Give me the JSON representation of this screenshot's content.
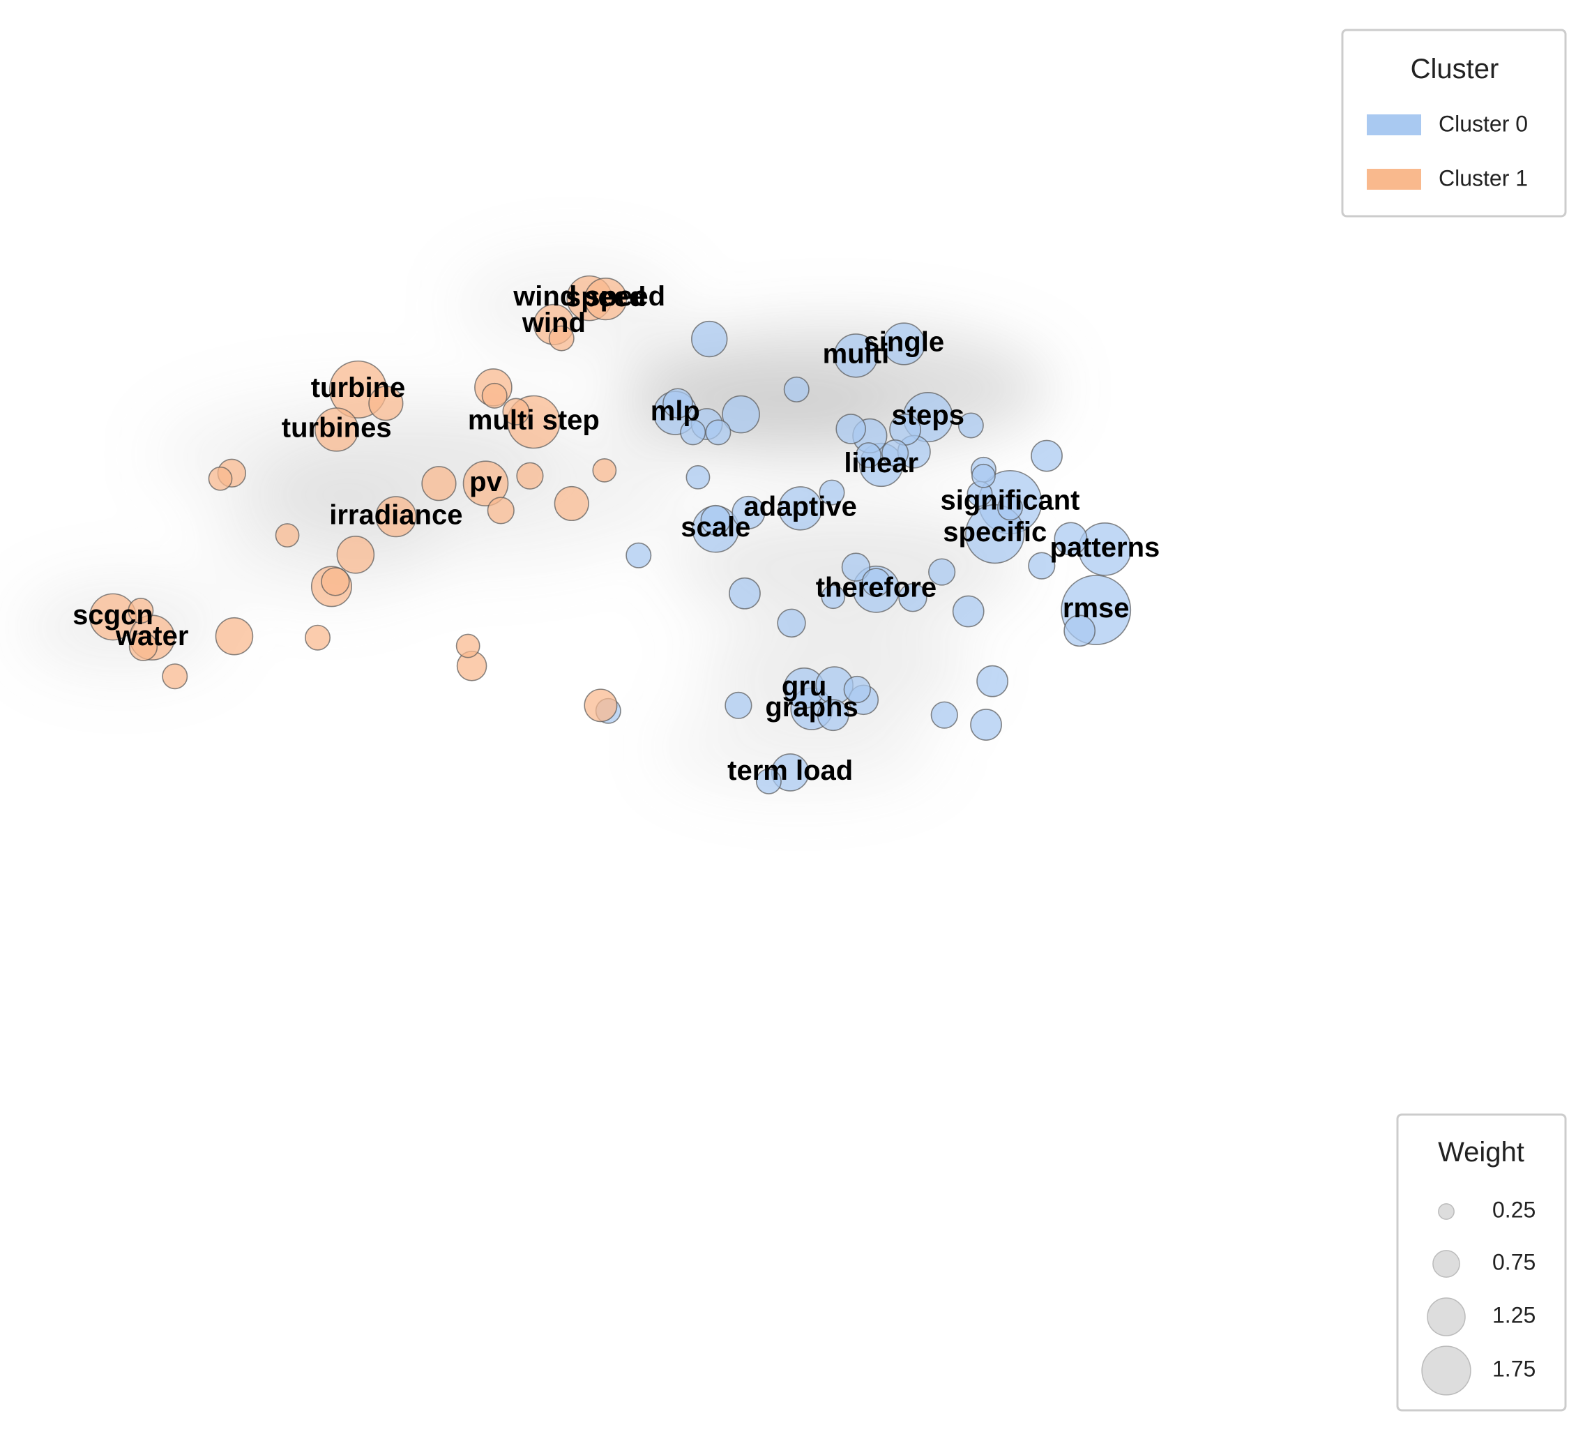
{
  "chart_data": {
    "type": "scatter",
    "title": "",
    "xlabel": "",
    "ylabel": "",
    "grid": false,
    "xlim": [
      0,
      1000
    ],
    "ylim": [
      0,
      1000
    ],
    "density_background": true,
    "colors": {
      "Cluster 0": "#a9c9f1",
      "Cluster 1": "#f9b98d",
      "stroke": "#555555",
      "weight_swatch": "#d9d9d9"
    },
    "legend_cluster": {
      "title": "Cluster",
      "placement": "top-right",
      "entries": [
        {
          "label": "Cluster 0",
          "color": "#a9c9f1"
        },
        {
          "label": "Cluster 1",
          "color": "#f9b98d"
        }
      ]
    },
    "legend_weight": {
      "title": "Weight",
      "placement": "bottom-right",
      "values": [
        0.25,
        0.75,
        1.25,
        1.75
      ],
      "labels": [
        "0.25",
        "0.75",
        "1.25",
        "1.75"
      ]
    },
    "density_blobs": [
      {
        "x": 620,
        "y": 715,
        "wx": 170,
        "wy": 90,
        "strength": 0.75
      },
      {
        "x": 560,
        "y": 680,
        "wx": 110,
        "wy": 60,
        "strength": 0.45
      },
      {
        "x": 630,
        "y": 460,
        "wx": 140,
        "wy": 80,
        "strength": 0.45
      },
      {
        "x": 620,
        "y": 310,
        "wx": 110,
        "wy": 65,
        "strength": 0.4
      },
      {
        "x": 590,
        "y": 195,
        "wx": 110,
        "wy": 60,
        "strength": 0.3
      },
      {
        "x": 330,
        "y": 570,
        "wx": 170,
        "wy": 110,
        "strength": 0.3
      },
      {
        "x": 215,
        "y": 500,
        "wx": 90,
        "wy": 90,
        "strength": 0.3
      },
      {
        "x": 410,
        "y": 835,
        "wx": 90,
        "wy": 70,
        "strength": 0.3
      },
      {
        "x": 55,
        "y": 370,
        "wx": 80,
        "wy": 65,
        "strength": 0.35
      },
      {
        "x": 240,
        "y": 620,
        "wx": 160,
        "wy": 90,
        "strength": 0.25
      }
    ],
    "series": [
      {
        "name": "Cluster 0",
        "points": [
          {
            "label": "single",
            "x": 674,
            "y": 780,
            "w": 0.9
          },
          {
            "label": "multi",
            "x": 636,
            "y": 763,
            "w": 0.95
          },
          {
            "label": "",
            "x": 520,
            "y": 787,
            "w": 0.7
          },
          {
            "label": "",
            "x": 589,
            "y": 714,
            "w": 0.35
          },
          {
            "label": "mlp",
            "x": 493,
            "y": 680,
            "w": 0.95
          },
          {
            "label": "",
            "x": 495,
            "y": 694,
            "w": 0.5
          },
          {
            "label": "",
            "x": 545,
            "y": 678,
            "w": 0.75
          },
          {
            "label": "",
            "x": 518,
            "y": 664,
            "w": 0.55
          },
          {
            "label": "",
            "x": 507,
            "y": 652,
            "w": 0.35
          },
          {
            "label": "",
            "x": 527,
            "y": 652,
            "w": 0.35
          },
          {
            "label": "steps",
            "x": 693,
            "y": 674,
            "w": 1.15
          },
          {
            "label": "",
            "x": 632,
            "y": 657,
            "w": 0.5
          },
          {
            "label": "",
            "x": 647,
            "y": 647,
            "w": 0.65
          },
          {
            "label": "",
            "x": 675,
            "y": 656,
            "w": 0.55
          },
          {
            "label": "",
            "x": 727,
            "y": 662,
            "w": 0.35
          },
          {
            "label": "",
            "x": 682,
            "y": 624,
            "w": 0.6
          },
          {
            "label": "",
            "x": 667,
            "y": 622,
            "w": 0.4
          },
          {
            "label": "",
            "x": 646,
            "y": 619,
            "w": 0.35
          },
          {
            "label": "linear",
            "x": 656,
            "y": 605,
            "w": 0.95
          },
          {
            "label": "",
            "x": 787,
            "y": 618,
            "w": 0.55
          },
          {
            "label": "",
            "x": 737,
            "y": 598,
            "w": 0.35
          },
          {
            "label": "",
            "x": 737,
            "y": 589,
            "w": 0.3
          },
          {
            "label": "",
            "x": 511,
            "y": 587,
            "w": 0.3
          },
          {
            "label": "",
            "x": 617,
            "y": 565,
            "w": 0.35
          },
          {
            "label": "",
            "x": 734,
            "y": 563,
            "w": 0.35
          },
          {
            "label": "significant",
            "x": 758,
            "y": 551,
            "w": 1.6
          },
          {
            "label": "",
            "x": 758,
            "y": 543,
            "w": 0.35
          },
          {
            "label": "adaptive",
            "x": 592,
            "y": 542,
            "w": 0.95
          },
          {
            "label": "",
            "x": 551,
            "y": 536,
            "w": 0.6
          },
          {
            "label": "scale",
            "x": 525,
            "y": 512,
            "w": 1.05
          },
          {
            "label": "",
            "x": 525,
            "y": 525,
            "w": 0.5
          },
          {
            "label": "specific",
            "x": 746,
            "y": 505,
            "w": 1.45
          },
          {
            "label": "",
            "x": 806,
            "y": 498,
            "w": 0.6
          },
          {
            "label": "patterns",
            "x": 833,
            "y": 483,
            "w": 1.25
          },
          {
            "label": "",
            "x": 464,
            "y": 474,
            "w": 0.35
          },
          {
            "label": "",
            "x": 636,
            "y": 457,
            "w": 0.45
          },
          {
            "label": "",
            "x": 783,
            "y": 459,
            "w": 0.4
          },
          {
            "label": "",
            "x": 704,
            "y": 450,
            "w": 0.4
          },
          {
            "label": "therefore",
            "x": 652,
            "y": 425,
            "w": 1.05
          },
          {
            "label": "",
            "x": 652,
            "y": 435,
            "w": 0.45
          },
          {
            "label": "",
            "x": 618,
            "y": 414,
            "w": 0.3
          },
          {
            "label": "",
            "x": 681,
            "y": 413,
            "w": 0.45
          },
          {
            "label": "",
            "x": 548,
            "y": 419,
            "w": 0.55
          },
          {
            "label": "rmse",
            "x": 826,
            "y": 395,
            "w": 1.8
          },
          {
            "label": "",
            "x": 725,
            "y": 393,
            "w": 0.55
          },
          {
            "label": "",
            "x": 585,
            "y": 376,
            "w": 0.45
          },
          {
            "label": "",
            "x": 813,
            "y": 365,
            "w": 0.55
          },
          {
            "label": "",
            "x": 744,
            "y": 292,
            "w": 0.55
          },
          {
            "label": "gru",
            "x": 595,
            "y": 282,
            "w": 0.85
          },
          {
            "label": "",
            "x": 619,
            "y": 286,
            "w": 0.75
          },
          {
            "label": "",
            "x": 637,
            "y": 280,
            "w": 0.4
          },
          {
            "label": "",
            "x": 642,
            "y": 265,
            "w": 0.5
          },
          {
            "label": "graphs",
            "x": 601,
            "y": 252,
            "w": 0.9
          },
          {
            "label": "",
            "x": 618,
            "y": 243,
            "w": 0.55
          },
          {
            "label": "",
            "x": 543,
            "y": 257,
            "w": 0.4
          },
          {
            "label": "",
            "x": 706,
            "y": 243,
            "w": 0.4
          },
          {
            "label": "",
            "x": 739,
            "y": 229,
            "w": 0.55
          },
          {
            "label": "",
            "x": 440,
            "y": 249,
            "w": 0.35
          },
          {
            "label": "term load",
            "x": 584,
            "y": 160,
            "w": 0.75
          },
          {
            "label": "",
            "x": 567,
            "y": 147,
            "w": 0.35
          }
        ]
      },
      {
        "name": "Cluster 1",
        "points": [
          {
            "label": "wind speed",
            "x": 425,
            "y": 846,
            "w": 1.0
          },
          {
            "label": "speed",
            "x": 438,
            "y": 845,
            "w": 0.9
          },
          {
            "label": "wind",
            "x": 397,
            "y": 808,
            "w": 0.85
          },
          {
            "label": "",
            "x": 403,
            "y": 788,
            "w": 0.35
          },
          {
            "label": "turbine",
            "x": 242,
            "y": 714,
            "w": 1.4
          },
          {
            "label": "",
            "x": 264,
            "y": 694,
            "w": 0.65
          },
          {
            "label": "",
            "x": 349,
            "y": 717,
            "w": 0.75
          },
          {
            "label": "",
            "x": 350,
            "y": 705,
            "w": 0.35
          },
          {
            "label": "",
            "x": 367,
            "y": 682,
            "w": 0.4
          },
          {
            "label": "multi step",
            "x": 381,
            "y": 667,
            "w": 1.25
          },
          {
            "label": "turbines",
            "x": 225,
            "y": 656,
            "w": 0.95
          },
          {
            "label": "",
            "x": 142,
            "y": 593,
            "w": 0.45
          },
          {
            "label": "",
            "x": 133,
            "y": 585,
            "w": 0.3
          },
          {
            "label": "",
            "x": 306,
            "y": 578,
            "w": 0.65
          },
          {
            "label": "pv",
            "x": 343,
            "y": 578,
            "w": 1.0
          },
          {
            "label": "",
            "x": 378,
            "y": 589,
            "w": 0.4
          },
          {
            "label": "",
            "x": 437,
            "y": 597,
            "w": 0.3
          },
          {
            "label": "",
            "x": 411,
            "y": 549,
            "w": 0.65
          },
          {
            "label": "",
            "x": 355,
            "y": 539,
            "w": 0.4
          },
          {
            "label": "irradiance",
            "x": 272,
            "y": 530,
            "w": 0.85
          },
          {
            "label": "",
            "x": 186,
            "y": 503,
            "w": 0.3
          },
          {
            "label": "",
            "x": 240,
            "y": 475,
            "w": 0.75
          },
          {
            "label": "",
            "x": 221,
            "y": 429,
            "w": 0.85
          },
          {
            "label": "",
            "x": 224,
            "y": 436,
            "w": 0.45
          },
          {
            "label": "scgcn",
            "x": 48,
            "y": 385,
            "w": 1.05
          },
          {
            "label": "",
            "x": 70,
            "y": 394,
            "w": 0.35
          },
          {
            "label": "water",
            "x": 79,
            "y": 355,
            "w": 1.0
          },
          {
            "label": "",
            "x": 72,
            "y": 342,
            "w": 0.45
          },
          {
            "label": "",
            "x": 144,
            "y": 357,
            "w": 0.75
          },
          {
            "label": "",
            "x": 210,
            "y": 355,
            "w": 0.35
          },
          {
            "label": "",
            "x": 329,
            "y": 343,
            "w": 0.3
          },
          {
            "label": "",
            "x": 332,
            "y": 314,
            "w": 0.5
          },
          {
            "label": "",
            "x": 97,
            "y": 299,
            "w": 0.35
          },
          {
            "label": "",
            "x": 434,
            "y": 257,
            "w": 0.6
          }
        ]
      }
    ]
  }
}
